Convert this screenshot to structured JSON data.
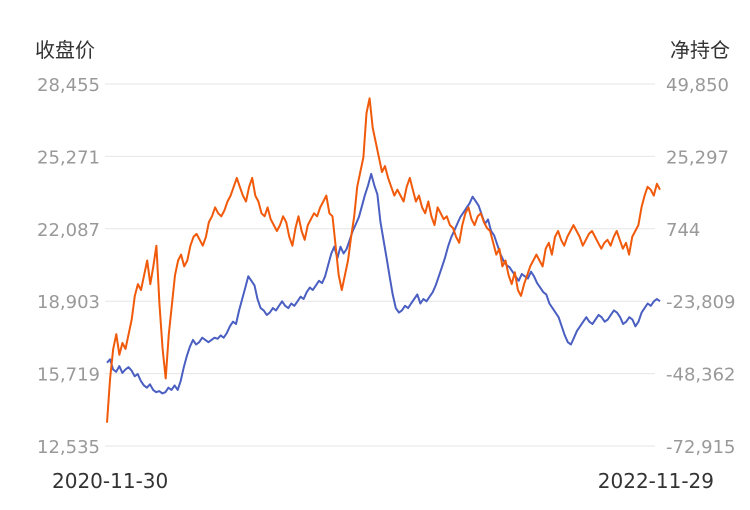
{
  "chart_data": {
    "type": "line",
    "left_axis_label": "收盘价",
    "right_axis_label": "净持仓",
    "left_ticks": [
      "28,455",
      "25,271",
      "22,087",
      "18,903",
      "15,719",
      "12,535"
    ],
    "right_ticks": [
      "49,850",
      "25,297",
      "744",
      "-23,809",
      "-48,362",
      "-72,915"
    ],
    "ylim_left": [
      12535,
      28455
    ],
    "ylim_right": [
      -72915,
      49850
    ],
    "x_start_label": "2020-11-30",
    "x_end_label": "2022-11-29",
    "grid": true,
    "series": [
      {
        "axis": "left",
        "color": "#4a5fc1",
        "values": [
          16200,
          16350,
          15900,
          15800,
          16050,
          15750,
          15900,
          16000,
          15850,
          15600,
          15700,
          15400,
          15200,
          15100,
          15250,
          15000,
          14900,
          14950,
          14850,
          14900,
          15100,
          15000,
          15200,
          15000,
          15400,
          16000,
          16500,
          16900,
          17200,
          17000,
          17100,
          17300,
          17200,
          17100,
          17200,
          17300,
          17250,
          17400,
          17300,
          17500,
          17800,
          18000,
          17900,
          18500,
          19000,
          19500,
          20000,
          19800,
          19600,
          19000,
          18600,
          18500,
          18300,
          18400,
          18600,
          18500,
          18700,
          18900,
          18700,
          18600,
          18800,
          18700,
          18900,
          19100,
          19000,
          19300,
          19500,
          19400,
          19600,
          19800,
          19700,
          20000,
          20500,
          21000,
          21300,
          20800,
          21300,
          21000,
          21200,
          21600,
          22000,
          22300,
          22600,
          23100,
          23600,
          24000,
          24500,
          24000,
          23600,
          22400,
          21600,
          20800,
          20000,
          19200,
          18600,
          18400,
          18500,
          18700,
          18600,
          18800,
          19000,
          19200,
          18800,
          19000,
          18900,
          19100,
          19300,
          19600,
          20000,
          20400,
          20800,
          21300,
          21700,
          22000,
          22300,
          22600,
          22800,
          23000,
          23200,
          23500,
          23300,
          23100,
          22700,
          22300,
          22500,
          22000,
          21800,
          21400,
          21000,
          20700,
          20500,
          20400,
          20200,
          20000,
          19800,
          20100,
          20000,
          19900,
          20200,
          20000,
          19700,
          19500,
          19300,
          19200,
          18800,
          18600,
          18400,
          18200,
          17800,
          17400,
          17100,
          17000,
          17300,
          17600,
          17800,
          18000,
          18200,
          18000,
          17900,
          18100,
          18300,
          18200,
          18000,
          18100,
          18300,
          18500,
          18400,
          18200,
          17900,
          18000,
          18200,
          18100,
          17800,
          18000,
          18400,
          18600,
          18800,
          18700,
          18900,
          19000,
          18900
        ]
      },
      {
        "axis": "right",
        "color": "#f05a0a",
        "values": [
          -65000,
          -50000,
          -40000,
          -35000,
          -42000,
          -38000,
          -40000,
          -35000,
          -30000,
          -22000,
          -18000,
          -20000,
          -15000,
          -10000,
          -18000,
          -12000,
          -5000,
          -25000,
          -40000,
          -50000,
          -35000,
          -25000,
          -15000,
          -10000,
          -8000,
          -12000,
          -10000,
          -5000,
          -2000,
          -1000,
          -3000,
          -5000,
          -2000,
          3000,
          5000,
          8000,
          6000,
          5000,
          7000,
          10000,
          12000,
          15000,
          18000,
          15000,
          12000,
          10000,
          15000,
          18000,
          12000,
          10000,
          6000,
          5000,
          8000,
          4000,
          2000,
          0,
          2000,
          5000,
          3000,
          -2000,
          -5000,
          1000,
          5000,
          0,
          -3000,
          2000,
          4000,
          6000,
          5000,
          8000,
          10000,
          12000,
          6000,
          5000,
          -5000,
          -15000,
          -20000,
          -15000,
          -10000,
          -2000,
          5000,
          15000,
          20000,
          25000,
          40000,
          45000,
          35000,
          30000,
          25000,
          20000,
          22000,
          18000,
          15000,
          12000,
          14000,
          12000,
          10000,
          15000,
          18000,
          14000,
          10000,
          12000,
          8000,
          6000,
          10000,
          5000,
          2000,
          8000,
          6000,
          4000,
          5000,
          2000,
          1000,
          -2000,
          -4000,
          2000,
          6000,
          8000,
          4000,
          2000,
          5000,
          6000,
          3000,
          1000,
          0,
          -4000,
          -8000,
          -6000,
          -12000,
          -10000,
          -15000,
          -18000,
          -14000,
          -20000,
          -22000,
          -18000,
          -15000,
          -12000,
          -10000,
          -8000,
          -10000,
          -12000,
          -6000,
          -4000,
          -8000,
          -2000,
          0,
          -3000,
          -5000,
          -2000,
          0,
          2000,
          0,
          -2000,
          -5000,
          -3000,
          -1000,
          0,
          -2000,
          -4000,
          -6000,
          -4000,
          -3000,
          -5000,
          -2000,
          0,
          -3000,
          -6000,
          -4000,
          -8000,
          -2000,
          0,
          2000,
          8000,
          12000,
          15000,
          14000,
          12000,
          16000,
          14000
        ]
      }
    ]
  }
}
